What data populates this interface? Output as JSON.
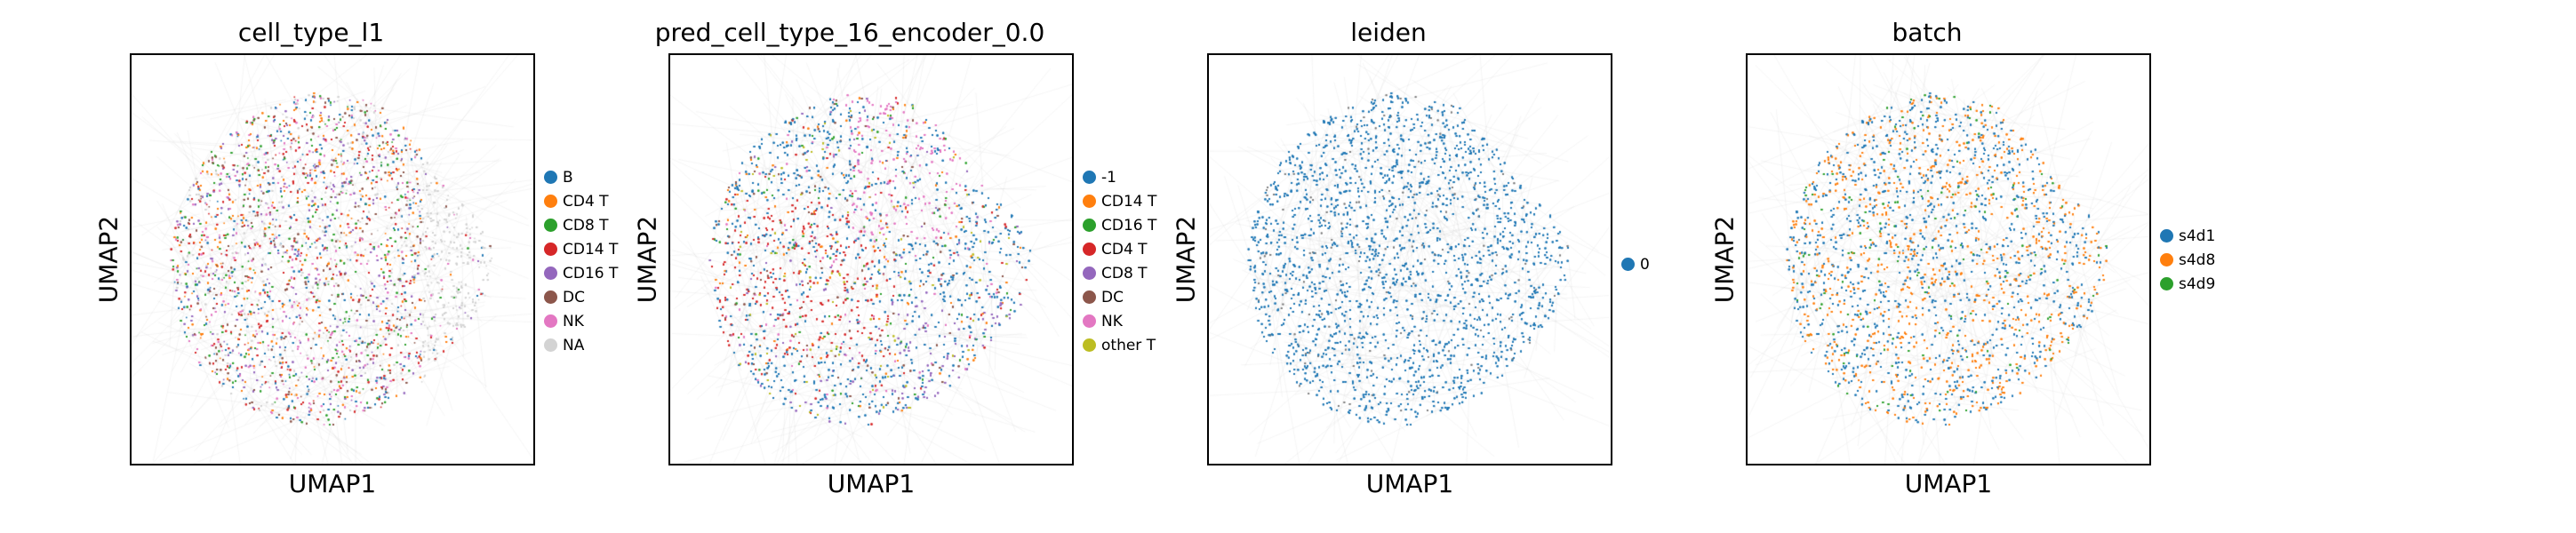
{
  "chart_data": [
    {
      "type": "scatter",
      "title": "cell_type_l1",
      "xlabel": "UMAP1",
      "ylabel": "UMAP2",
      "legend_position": "right",
      "categories": [
        {
          "name": "B",
          "color": "#1f77b4"
        },
        {
          "name": "CD4 T",
          "color": "#ff7f0e"
        },
        {
          "name": "CD8 T",
          "color": "#2ca02c"
        },
        {
          "name": "CD14 T",
          "color": "#d62728"
        },
        {
          "name": "CD16 T",
          "color": "#9467bd"
        },
        {
          "name": "DC",
          "color": "#8c564b"
        },
        {
          "name": "NK",
          "color": "#e377c2"
        },
        {
          "name": "NA",
          "color": "#d3d3d3"
        }
      ]
    },
    {
      "type": "scatter",
      "title": "pred_cell_type_16_encoder_0.0",
      "xlabel": "UMAP1",
      "ylabel": "UMAP2",
      "legend_position": "right",
      "categories": [
        {
          "name": "-1",
          "color": "#1f77b4"
        },
        {
          "name": "CD14 T",
          "color": "#ff7f0e"
        },
        {
          "name": "CD16 T",
          "color": "#2ca02c"
        },
        {
          "name": "CD4 T",
          "color": "#d62728"
        },
        {
          "name": "CD8 T",
          "color": "#9467bd"
        },
        {
          "name": "DC",
          "color": "#8c564b"
        },
        {
          "name": "NK",
          "color": "#e377c2"
        },
        {
          "name": "other T",
          "color": "#bcbd22"
        }
      ]
    },
    {
      "type": "scatter",
      "title": "leiden",
      "xlabel": "UMAP1",
      "ylabel": "UMAP2",
      "legend_position": "right",
      "categories": [
        {
          "name": "0",
          "color": "#1f77b4"
        }
      ]
    },
    {
      "type": "scatter",
      "title": "batch",
      "xlabel": "UMAP1",
      "ylabel": "UMAP2",
      "legend_position": "right",
      "categories": [
        {
          "name": "s4d1",
          "color": "#1f77b4"
        },
        {
          "name": "s4d8",
          "color": "#ff7f0e"
        },
        {
          "name": "s4d9",
          "color": "#2ca02c"
        }
      ]
    }
  ]
}
